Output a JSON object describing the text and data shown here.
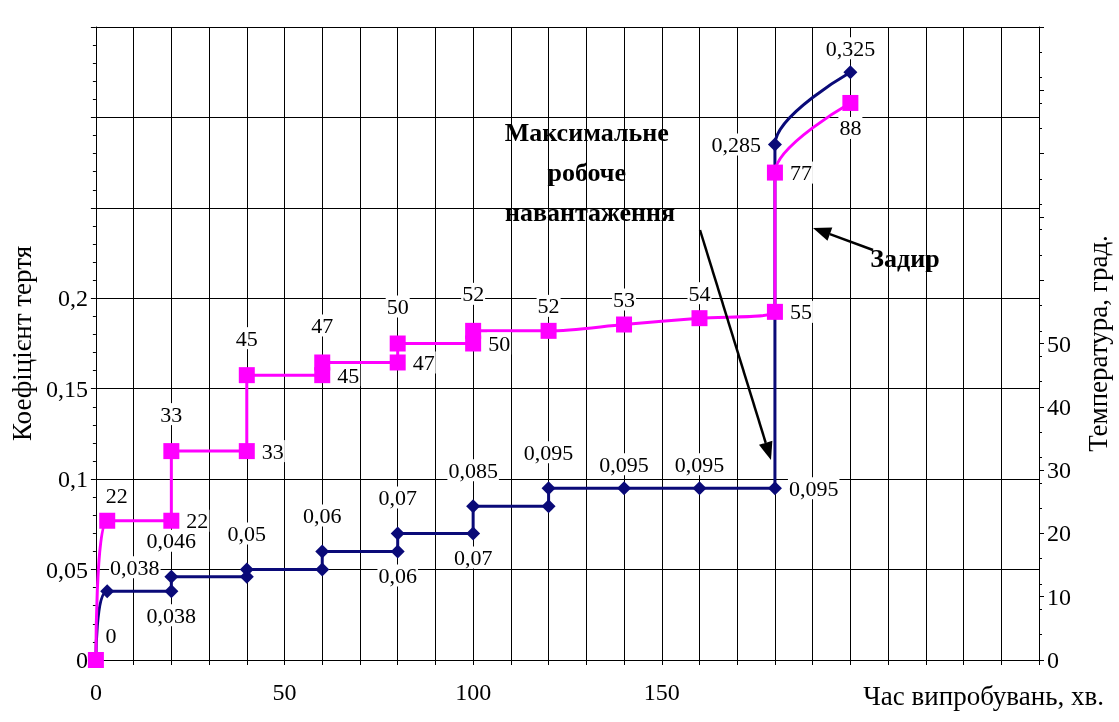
{
  "chart_data": {
    "type": "line",
    "xlabel": "Час випробувань, хв.",
    "ylabel": "Коефіцієнт тертя",
    "y2label": "Температура, град.",
    "xlim": [
      0,
      250
    ],
    "xticks": [
      0,
      {
        "value": 10,
        "label": null
      },
      {
        "value": 20,
        "label": null
      },
      {
        "value": 30,
        "label": null
      },
      {
        "value": 40,
        "label": null
      },
      50,
      {
        "value": 60,
        "label": null
      },
      {
        "value": 70,
        "label": null
      },
      {
        "value": 80,
        "label": null
      },
      {
        "value": 90,
        "label": null
      },
      100,
      {
        "value": 110,
        "label": null
      },
      {
        "value": 120,
        "label": null
      },
      {
        "value": 130,
        "label": null
      },
      {
        "value": 140,
        "label": null
      },
      150,
      {
        "value": 160,
        "label": null
      },
      {
        "value": 170,
        "label": null
      },
      {
        "value": 180,
        "label": null
      },
      {
        "value": 190,
        "label": null
      },
      {
        "value": 200,
        "label": null
      },
      {
        "value": 210,
        "label": null
      },
      {
        "value": 220,
        "label": null
      },
      {
        "value": 230,
        "label": null
      },
      {
        "value": 240,
        "label": null
      },
      {
        "value": 250,
        "label": null
      }
    ],
    "ylim": [
      0,
      0.35
    ],
    "yticks": [
      0,
      {
        "value": 0.05,
        "label": "0,05"
      },
      {
        "value": 0.1,
        "label": "0,1"
      },
      {
        "value": 0.15,
        "label": "0,15"
      },
      {
        "value": 0.2,
        "label": "0,2"
      },
      {
        "value": 0.25,
        "label": null
      },
      {
        "value": 0.3,
        "label": null
      },
      {
        "value": 0.35,
        "label": null
      }
    ],
    "y2lim": [
      0,
      100
    ],
    "y2ticks": [
      0,
      10,
      20,
      30,
      40,
      50,
      {
        "value": 60,
        "label": null
      },
      {
        "value": 70,
        "label": null
      },
      {
        "value": 80,
        "label": null
      },
      {
        "value": 90,
        "label": null
      },
      {
        "value": 100,
        "label": null
      }
    ],
    "grid": true,
    "series": [
      {
        "color": "#0a0a78",
        "marker": "diamond",
        "x": [
          0,
          3,
          20,
          20,
          40,
          40,
          60,
          60,
          80,
          80,
          100,
          100,
          120,
          120,
          140,
          160,
          180,
          180,
          200
        ],
        "values": [
          0,
          0.038,
          0.038,
          0.046,
          0.046,
          0.05,
          0.05,
          0.06,
          0.06,
          0.07,
          0.07,
          0.085,
          0.085,
          0.095,
          0.095,
          0.095,
          0.095,
          0.285,
          0.325
        ],
        "value_labels": [
          null,
          "0,038",
          "0,038",
          "0,046",
          null,
          "0,05",
          null,
          "0,06",
          "0,06",
          "0,07",
          "0,07",
          "0,085",
          null,
          "0,095",
          "0,095",
          "0,095",
          "0,095",
          "0,285",
          "0,325"
        ]
      },
      {
        "axis": "y2",
        "color": "#ff00ff",
        "marker": "square",
        "x": [
          0,
          3,
          20,
          20,
          40,
          40,
          60,
          60,
          80,
          80,
          100,
          100,
          120,
          140,
          160,
          180,
          180,
          200
        ],
        "values": [
          0,
          22,
          22,
          33,
          33,
          45,
          45,
          47,
          47,
          50,
          50,
          52,
          52,
          53,
          54,
          55,
          77,
          88
        ],
        "value_labels": [
          "0",
          "22",
          "22",
          "33",
          "33",
          "45",
          "45",
          "47",
          "47",
          "50",
          "50",
          "52",
          "52",
          "53",
          "54",
          "55",
          "77",
          "88"
        ]
      }
    ],
    "annotations": [
      "Максимальне робоче навантаження",
      "Задир"
    ]
  }
}
